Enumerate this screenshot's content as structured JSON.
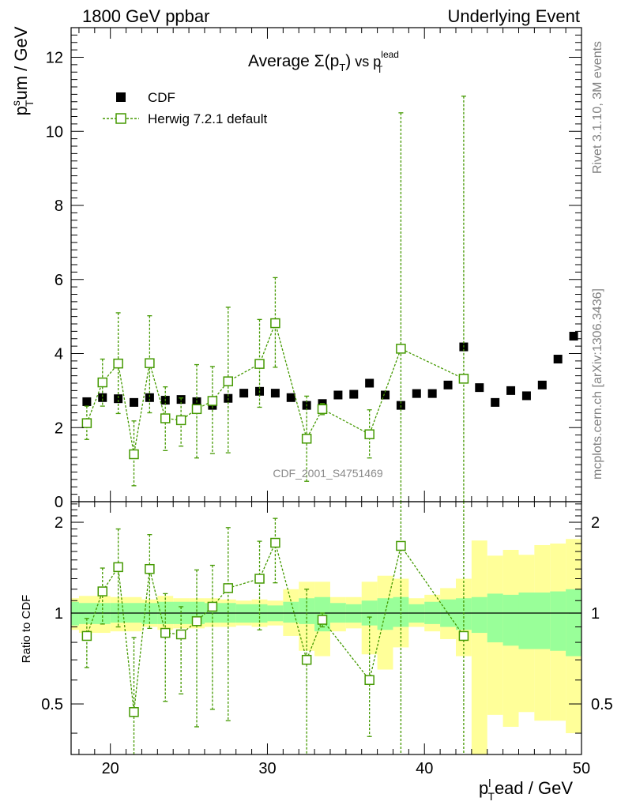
{
  "header": {
    "left": "1800 GeV ppbar",
    "right": "Underlying Event"
  },
  "side_labels": {
    "rivet": "Rivet 3.1.10,  3M events",
    "mcplots": "mcplots.cern.ch [arXiv:1306.3436]"
  },
  "watermark": "CDF_2001_S4751469",
  "chart_data": {
    "type": "scatter",
    "title": "Average Σ(pT) vs pT lead",
    "title_parts": {
      "prefix": "Average ",
      "sigma": "Σ(p",
      "sub1": "T",
      "close": ")",
      "vs": " vs p",
      "sup": "lead",
      "sub2": "T"
    },
    "ylabel_parts": {
      "p": "p",
      "sup": "s",
      "sub": "T",
      "rest": "um / GeV"
    },
    "xlabel_parts": {
      "p": "p",
      "sup": "l",
      "sub": "T",
      "rest": "ead / GeV"
    },
    "ratio_ylabel": "Ratio to CDF",
    "xlim": [
      17.5,
      50.0
    ],
    "ylim": [
      0,
      12.8
    ],
    "ratio_ylim": [
      0.34,
      2.34
    ],
    "x_ticks": [
      20,
      30,
      40,
      50
    ],
    "y_ticks": [
      0,
      2,
      4,
      6,
      8,
      10,
      12
    ],
    "ratio_ticks": [
      0.5,
      1,
      2
    ],
    "legend": {
      "position": "top-left",
      "entries": [
        "CDF",
        "Herwig 7.2.1 default"
      ]
    },
    "series": [
      {
        "name": "CDF",
        "color": "#000000",
        "marker": "filled-square",
        "x": [
          18.5,
          19.5,
          20.5,
          21.5,
          22.5,
          23.5,
          24.5,
          25.5,
          26.5,
          27.5,
          28.5,
          29.5,
          30.5,
          31.5,
          32.5,
          33.5,
          34.5,
          35.5,
          36.5,
          37.5,
          38.5,
          39.5,
          40.5,
          41.5,
          42.5,
          43.5,
          44.5,
          45.5,
          46.5,
          47.5,
          48.5,
          49.5
        ],
        "y": [
          2.7,
          2.81,
          2.78,
          2.68,
          2.81,
          2.74,
          2.76,
          2.7,
          2.6,
          2.79,
          2.93,
          2.98,
          2.93,
          2.81,
          2.6,
          2.65,
          2.88,
          2.9,
          3.2,
          2.88,
          2.6,
          2.92,
          2.92,
          3.15,
          4.18,
          3.08,
          2.68,
          3.0,
          2.86,
          3.15,
          3.85,
          4.47
        ]
      },
      {
        "name": "Herwig 7.2.1 default",
        "color": "#449900",
        "marker": "open-square",
        "x": [
          18.5,
          19.5,
          20.5,
          21.5,
          22.5,
          23.5,
          24.5,
          25.5,
          26.5,
          27.5,
          29.5,
          30.5,
          32.5,
          33.5,
          36.5,
          38.5,
          42.5
        ],
        "y": [
          2.12,
          3.22,
          3.73,
          1.28,
          3.74,
          2.25,
          2.2,
          2.5,
          2.72,
          3.25,
          3.72,
          4.82,
          1.7,
          2.5,
          1.82,
          4.13,
          3.32
        ],
        "err_low": [
          1.68,
          2.58,
          2.38,
          0.43,
          2.4,
          1.38,
          1.5,
          1.18,
          1.3,
          1.32,
          2.55,
          3.63,
          0.55,
          2.35,
          1.18,
          0.0,
          0.0
        ],
        "err_high": [
          2.58,
          3.85,
          5.1,
          2.18,
          5.02,
          3.1,
          2.8,
          3.7,
          3.65,
          5.25,
          4.92,
          6.05,
          2.85,
          2.65,
          2.48,
          10.5,
          10.95
        ],
        "ratio": [
          0.84,
          1.18,
          1.42,
          0.47,
          1.4,
          0.86,
          0.85,
          0.94,
          1.05,
          1.21,
          1.3,
          1.71,
          0.7,
          0.95,
          0.6,
          1.67,
          0.84
        ],
        "ratio_low": [
          0.66,
          0.92,
          0.9,
          0.32,
          0.89,
          0.51,
          0.54,
          0.42,
          0.48,
          0.44,
          0.88,
          1.26,
          0.32,
          0.9,
          0.39,
          0.0,
          0.0
        ],
        "ratio_high": [
          0.96,
          1.41,
          1.9,
          0.83,
          1.82,
          1.16,
          1.05,
          1.39,
          1.44,
          1.92,
          1.73,
          2.06,
          1.2,
          1.0,
          0.97,
          2.4,
          2.4
        ]
      }
    ],
    "ratio_band_stat": [
      [
        17.5,
        18.0,
        0.91,
        1.09
      ],
      [
        18.0,
        20.0,
        0.92,
        1.08
      ],
      [
        20.0,
        22.0,
        0.93,
        1.08
      ],
      [
        22.0,
        23.0,
        0.92,
        1.08
      ],
      [
        23.0,
        26.0,
        0.92,
        1.09
      ],
      [
        26.0,
        28.0,
        0.93,
        1.08
      ],
      [
        28.0,
        30.0,
        0.93,
        1.07
      ],
      [
        30.0,
        31.0,
        0.94,
        1.06
      ],
      [
        31.0,
        32.0,
        0.93,
        1.09
      ],
      [
        32.0,
        33.0,
        0.92,
        1.12
      ],
      [
        33.0,
        34.0,
        0.87,
        1.13
      ],
      [
        34.0,
        35.0,
        0.93,
        1.08
      ],
      [
        35.0,
        36.0,
        0.93,
        1.07
      ],
      [
        36.0,
        37.0,
        0.91,
        1.1
      ],
      [
        37.0,
        38.0,
        0.88,
        1.12
      ],
      [
        38.0,
        39.0,
        0.9,
        1.13
      ],
      [
        39.0,
        40.0,
        0.93,
        1.07
      ],
      [
        40.0,
        41.0,
        0.92,
        1.09
      ],
      [
        41.0,
        42.0,
        0.9,
        1.11
      ],
      [
        42.0,
        43.0,
        0.88,
        1.12
      ],
      [
        43.0,
        44.0,
        0.86,
        1.13
      ],
      [
        44.0,
        45.0,
        0.8,
        1.16
      ],
      [
        45.0,
        46.0,
        0.78,
        1.15
      ],
      [
        46.0,
        48.0,
        0.76,
        1.17
      ],
      [
        48.0,
        49.0,
        0.75,
        1.18
      ],
      [
        49.0,
        50.0,
        0.72,
        1.2
      ]
    ],
    "ratio_band_total": [
      [
        17.5,
        18.0,
        0.88,
        1.12
      ],
      [
        18.0,
        20.0,
        0.86,
        1.14
      ],
      [
        20.0,
        22.0,
        0.87,
        1.13
      ],
      [
        22.0,
        23.0,
        0.9,
        1.11
      ],
      [
        23.0,
        24.0,
        0.88,
        1.14
      ],
      [
        24.0,
        25.0,
        0.89,
        1.12
      ],
      [
        25.0,
        26.0,
        0.89,
        1.12
      ],
      [
        26.0,
        27.0,
        0.9,
        1.12
      ],
      [
        27.0,
        28.0,
        0.9,
        1.11
      ],
      [
        28.0,
        29.0,
        0.91,
        1.1
      ],
      [
        29.0,
        30.0,
        0.9,
        1.11
      ],
      [
        30.0,
        31.0,
        0.91,
        1.1
      ],
      [
        31.0,
        32.0,
        0.84,
        1.2
      ],
      [
        32.0,
        33.0,
        0.75,
        1.27
      ],
      [
        33.0,
        34.0,
        0.72,
        1.27
      ],
      [
        34.0,
        35.0,
        0.87,
        1.13
      ],
      [
        35.0,
        36.0,
        0.89,
        1.13
      ],
      [
        36.0,
        37.0,
        0.73,
        1.27
      ],
      [
        37.0,
        38.0,
        0.65,
        1.33
      ],
      [
        38.0,
        39.0,
        0.77,
        1.3
      ],
      [
        39.0,
        40.0,
        0.9,
        1.12
      ],
      [
        40.0,
        41.0,
        0.87,
        1.15
      ],
      [
        41.0,
        42.0,
        0.82,
        1.21
      ],
      [
        42.0,
        43.0,
        0.72,
        1.3
      ],
      [
        43.0,
        44.0,
        0.34,
        1.74
      ],
      [
        44.0,
        45.0,
        0.46,
        1.55
      ],
      [
        45.0,
        46.0,
        0.42,
        1.62
      ],
      [
        46.0,
        47.0,
        0.47,
        1.56
      ],
      [
        47.0,
        48.0,
        0.44,
        1.68
      ],
      [
        48.0,
        49.0,
        0.44,
        1.7
      ],
      [
        49.0,
        50.0,
        0.4,
        1.76
      ]
    ]
  }
}
